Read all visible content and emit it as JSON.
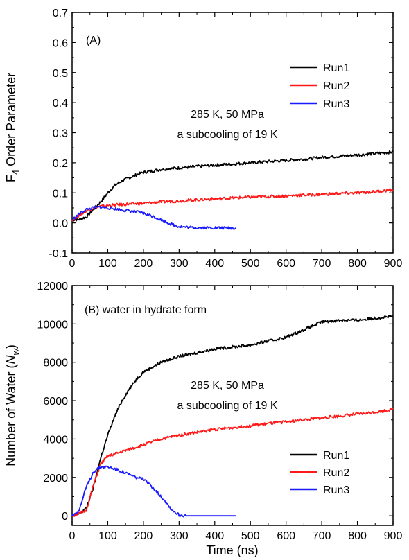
{
  "colors": {
    "Run1": "#000000",
    "Run2": "#ff1a1a",
    "Run3": "#1a1aff"
  },
  "chart_data": [
    {
      "type": "line",
      "panel_label": "(A)",
      "annotation_line1": "285 K, 50 MPa",
      "annotation_line2": "a subcooling of 19 K",
      "xlabel": "",
      "ylabel_main": "F",
      "ylabel_sub": "4",
      "ylabel_rest": " Order Parameter",
      "xlim": [
        0,
        900
      ],
      "ylim": [
        -0.1,
        0.7
      ],
      "xticks": [
        "0",
        "100",
        "200",
        "300",
        "400",
        "500",
        "600",
        "700",
        "800",
        "900"
      ],
      "yticks": [
        "-0.1",
        "0.0",
        "0.1",
        "0.2",
        "0.3",
        "0.4",
        "0.5",
        "0.6",
        "0.7"
      ],
      "legend_position": "right",
      "series": [
        {
          "name": "Run1",
          "color": "#000000",
          "x": [
            0,
            20,
            40,
            60,
            80,
            100,
            120,
            140,
            160,
            180,
            200,
            250,
            300,
            350,
            400,
            450,
            500,
            550,
            600,
            650,
            700,
            750,
            800,
            850,
            900
          ],
          "y": [
            0.01,
            0.012,
            0.02,
            0.045,
            0.07,
            0.1,
            0.125,
            0.14,
            0.15,
            0.16,
            0.168,
            0.178,
            0.183,
            0.188,
            0.192,
            0.196,
            0.2,
            0.204,
            0.208,
            0.212,
            0.218,
            0.222,
            0.226,
            0.231,
            0.236
          ]
        },
        {
          "name": "Run2",
          "color": "#ff1a1a",
          "x": [
            0,
            20,
            40,
            60,
            80,
            100,
            150,
            200,
            250,
            300,
            350,
            400,
            450,
            500,
            550,
            600,
            650,
            700,
            750,
            800,
            850,
            900
          ],
          "y": [
            0.01,
            0.025,
            0.04,
            0.05,
            0.055,
            0.058,
            0.062,
            0.065,
            0.07,
            0.073,
            0.077,
            0.08,
            0.083,
            0.086,
            0.088,
            0.09,
            0.093,
            0.095,
            0.098,
            0.1,
            0.104,
            0.11
          ]
        },
        {
          "name": "Run3",
          "color": "#1a1aff",
          "x": [
            0,
            20,
            40,
            60,
            80,
            100,
            130,
            160,
            190,
            220,
            250,
            280,
            300,
            330,
            360,
            400,
            430,
            460
          ],
          "y": [
            0.01,
            0.03,
            0.045,
            0.05,
            0.053,
            0.05,
            0.045,
            0.04,
            0.035,
            0.025,
            0.01,
            -0.005,
            -0.012,
            -0.015,
            -0.016,
            -0.016,
            -0.017,
            -0.017
          ]
        }
      ]
    },
    {
      "type": "line",
      "panel_label": "(B) water in hydrate form",
      "annotation_line1": "285 K, 50 MPa",
      "annotation_line2": "a subcooling of 19 K",
      "xlabel": "Time (ns)",
      "ylabel_main": "Number of Water (",
      "ylabel_italic": "N",
      "ylabel_sub": "w",
      "ylabel_rest": ")",
      "xlim": [
        0,
        900
      ],
      "ylim": [
        -500,
        12000
      ],
      "xticks": [
        "0",
        "100",
        "200",
        "300",
        "400",
        "500",
        "600",
        "700",
        "800",
        "900"
      ],
      "yticks": [
        "0",
        "2000",
        "4000",
        "6000",
        "8000",
        "10000",
        "12000"
      ],
      "ytick_values": [
        0,
        2000,
        4000,
        6000,
        8000,
        10000,
        12000
      ],
      "legend_position": "bottom-right",
      "series": [
        {
          "name": "Run1",
          "color": "#000000",
          "x": [
            0,
            20,
            40,
            60,
            80,
            100,
            120,
            140,
            160,
            180,
            200,
            250,
            300,
            350,
            400,
            450,
            500,
            550,
            600,
            650,
            700,
            750,
            800,
            850,
            900
          ],
          "y": [
            0,
            100,
            400,
            1500,
            3000,
            4200,
            5200,
            6000,
            6600,
            7100,
            7500,
            8000,
            8300,
            8500,
            8700,
            8800,
            8900,
            9100,
            9300,
            9700,
            10100,
            10200,
            10200,
            10300,
            10400
          ]
        },
        {
          "name": "Run2",
          "color": "#ff1a1a",
          "x": [
            0,
            20,
            40,
            60,
            80,
            100,
            150,
            200,
            250,
            300,
            350,
            400,
            450,
            500,
            550,
            600,
            650,
            700,
            750,
            800,
            850,
            900
          ],
          "y": [
            0,
            100,
            300,
            1600,
            2700,
            3100,
            3400,
            3700,
            4000,
            4200,
            4350,
            4500,
            4600,
            4700,
            4800,
            4900,
            5000,
            5100,
            5200,
            5300,
            5400,
            5550
          ]
        },
        {
          "name": "Run3",
          "color": "#1a1aff",
          "x": [
            0,
            20,
            40,
            60,
            80,
            100,
            120,
            140,
            160,
            180,
            200,
            220,
            240,
            260,
            280,
            300,
            320,
            350,
            400,
            460
          ],
          "y": [
            0,
            300,
            1500,
            2300,
            2550,
            2550,
            2450,
            2300,
            2150,
            2000,
            1900,
            1600,
            1200,
            800,
            300,
            50,
            0,
            0,
            0,
            0
          ]
        }
      ]
    }
  ]
}
